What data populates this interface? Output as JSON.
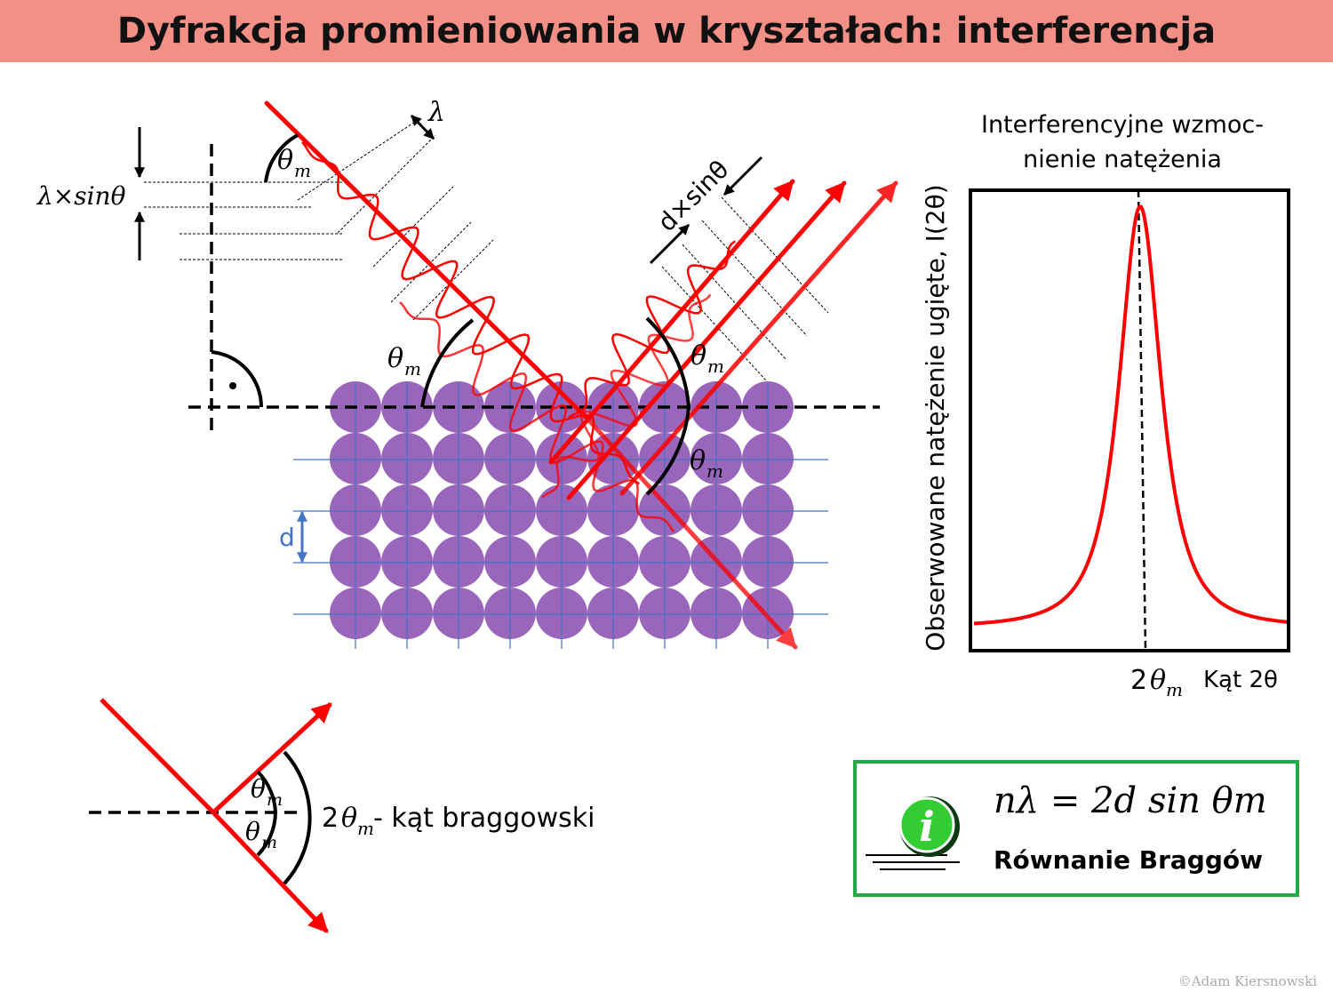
{
  "title": "Dyfrakcja promieniowania w kryształach: interferencja",
  "labels": {
    "lambda_sin": "λ×sinθ",
    "lambda": "λ",
    "d_sin": "d×sinθ",
    "theta_m": "θ",
    "sub_m": "m",
    "lattice_d": "d",
    "two": "2",
    "bragg_angle_text": " - kąt braggowski"
  },
  "graph": {
    "title_line1": "Interferencyjne wzmoc-",
    "title_line2": "nienie natężenia",
    "ylabel": "Obserwowane natężenie ugięte, I(2θ)",
    "x_peak_label_2": "2",
    "x_peak_label_theta": "θ",
    "x_peak_label_m": "m",
    "xlabel": "Kąt 2θ"
  },
  "info_box": {
    "formula": "nλ = 2d sin θm",
    "caption": "Równanie Braggów",
    "icon": "info-icon"
  },
  "copyright": "©Adam Kiersnowski",
  "colors": {
    "ray": "#ff0000",
    "atom": "#9966bb",
    "lattice_line": "#4472c4",
    "box_border": "#22aa44",
    "title_bg": "#f28f86"
  }
}
